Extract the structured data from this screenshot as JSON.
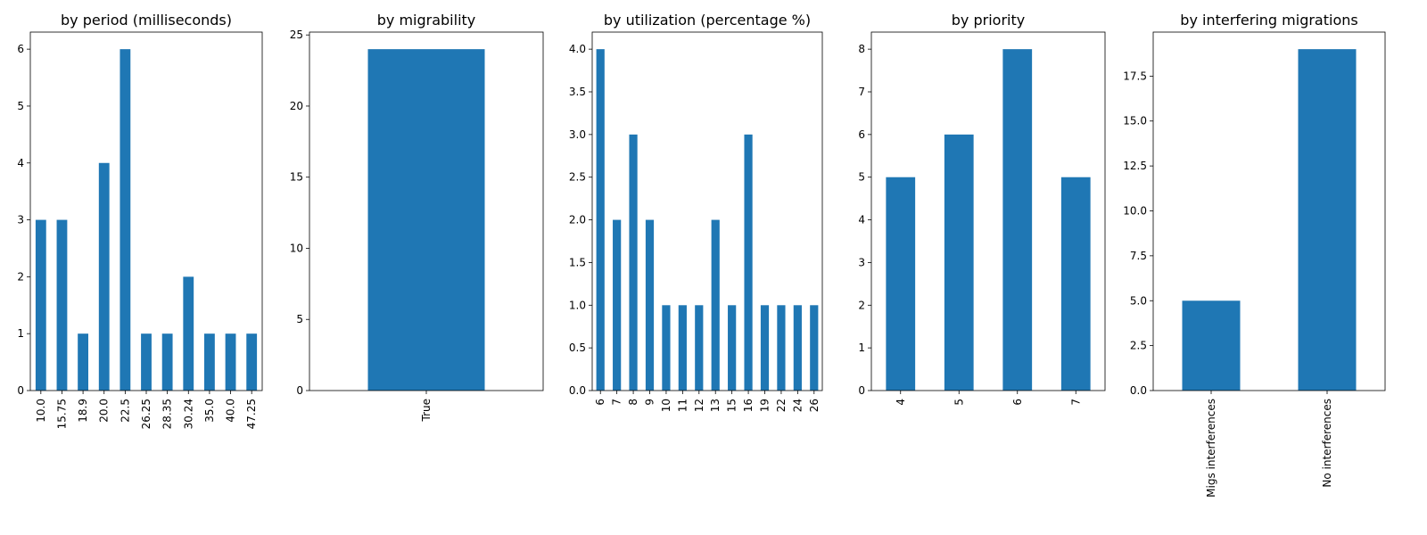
{
  "colors": {
    "bar": "#1f77b4",
    "axis": "#000000",
    "background": "#ffffff"
  },
  "chart_data": [
    {
      "type": "bar",
      "title": "by period (milliseconds)",
      "xlabel": "",
      "ylabel": "",
      "categories": [
        "10.0",
        "15.75",
        "18.9",
        "20.0",
        "22.5",
        "26.25",
        "28.35",
        "30.24",
        "35.0",
        "40.0",
        "47.25"
      ],
      "values": [
        3,
        3,
        1,
        4,
        6,
        1,
        1,
        2,
        1,
        1,
        1
      ],
      "ylim": [
        0,
        6.3
      ],
      "yticks": [
        "0",
        "1",
        "2",
        "3",
        "4",
        "5",
        "6"
      ],
      "grid": false,
      "legend": "none"
    },
    {
      "type": "bar",
      "title": "by migrability",
      "xlabel": "",
      "ylabel": "",
      "categories": [
        "True"
      ],
      "values": [
        24
      ],
      "ylim": [
        0,
        25.2
      ],
      "yticks": [
        "0",
        "5",
        "10",
        "15",
        "20",
        "25"
      ],
      "grid": false,
      "legend": "none"
    },
    {
      "type": "bar",
      "title": "by utilization (percentage %)",
      "xlabel": "",
      "ylabel": "",
      "categories": [
        "6",
        "7",
        "8",
        "9",
        "10",
        "11",
        "12",
        "13",
        "15",
        "16",
        "19",
        "22",
        "24",
        "26"
      ],
      "values": [
        4,
        2,
        3,
        2,
        1,
        1,
        1,
        2,
        1,
        3,
        1,
        1,
        1,
        1
      ],
      "ylim": [
        0,
        4.2
      ],
      "yticks": [
        "0.0",
        "0.5",
        "1.0",
        "1.5",
        "2.0",
        "2.5",
        "3.0",
        "3.5",
        "4.0"
      ],
      "grid": false,
      "legend": "none"
    },
    {
      "type": "bar",
      "title": "by priority",
      "xlabel": "",
      "ylabel": "",
      "categories": [
        "4",
        "5",
        "6",
        "7"
      ],
      "values": [
        5,
        6,
        8,
        5
      ],
      "ylim": [
        0,
        8.4
      ],
      "yticks": [
        "0",
        "1",
        "2",
        "3",
        "4",
        "5",
        "6",
        "7",
        "8"
      ],
      "grid": false,
      "legend": "none"
    },
    {
      "type": "bar",
      "title": "by interfering migrations",
      "xlabel": "",
      "ylabel": "",
      "categories": [
        "Migs interferences",
        "No interferences"
      ],
      "values": [
        5,
        19
      ],
      "ylim": [
        0,
        19.95
      ],
      "yticks": [
        "0.0",
        "2.5",
        "5.0",
        "7.5",
        "10.0",
        "12.5",
        "15.0",
        "17.5"
      ],
      "grid": false,
      "legend": "none"
    }
  ]
}
